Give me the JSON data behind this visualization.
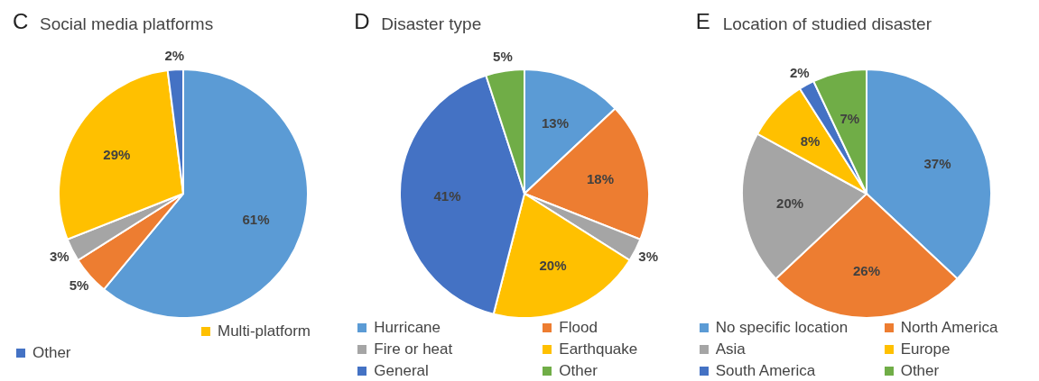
{
  "chart_data": [
    {
      "type": "pie",
      "title": "Social media platforms",
      "annotations": [
        "C"
      ],
      "categories": [
        null,
        null,
        null,
        "Multi-platform",
        "Other"
      ],
      "values": [
        61,
        5,
        3,
        29,
        2
      ],
      "colors": [
        "#5b9bd5",
        "#ed7d31",
        "#a5a5a5",
        "#ffc000",
        "#4472c4"
      ],
      "value_labels": [
        "61%",
        "5%",
        "3%",
        "29%",
        "2%"
      ],
      "legend": "bottom"
    },
    {
      "type": "pie",
      "title": "Disaster type",
      "annotations": [
        "D"
      ],
      "categories": [
        "Hurricane",
        "Flood",
        "Fire or heat",
        "Earthquake",
        "General",
        "Other"
      ],
      "values": [
        13,
        18,
        3,
        20,
        41,
        5
      ],
      "colors": [
        "#5b9bd5",
        "#ed7d31",
        "#a5a5a5",
        "#ffc000",
        "#4472c4",
        "#70ad47"
      ],
      "value_labels": [
        "13%",
        "18%",
        "3%",
        "20%",
        "41%",
        "5%"
      ],
      "legend": "bottom"
    },
    {
      "type": "pie",
      "title": "Location of studied disaster",
      "annotations": [
        "E"
      ],
      "categories": [
        "No specific location",
        "North America",
        "Asia",
        "Europe",
        "South America",
        "Other"
      ],
      "values": [
        37,
        26,
        20,
        8,
        2,
        7
      ],
      "colors": [
        "#5b9bd5",
        "#ed7d31",
        "#a5a5a5",
        "#ffc000",
        "#4472c4",
        "#70ad47"
      ],
      "value_labels": [
        "37%",
        "26%",
        "20%",
        "8%",
        "2%",
        "7%"
      ],
      "legend": "bottom"
    }
  ]
}
